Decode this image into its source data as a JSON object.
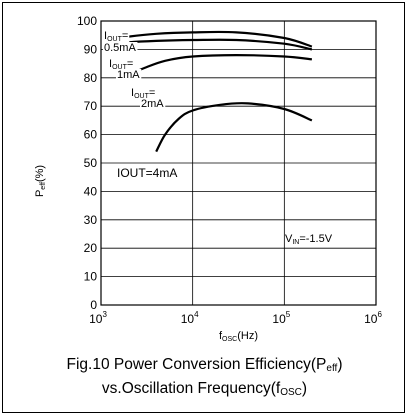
{
  "chart_data": {
    "type": "line",
    "xscale": "log",
    "xlim": [
      1000,
      1000000
    ],
    "ylim": [
      0,
      100
    ],
    "yticks": [
      0,
      10,
      20,
      30,
      40,
      50,
      60,
      70,
      80,
      90,
      100
    ],
    "xticks": [
      {
        "value": 1000,
        "base": "10",
        "exp": "3"
      },
      {
        "value": 10000,
        "base": "10",
        "exp": "4"
      },
      {
        "value": 100000,
        "base": "10",
        "exp": "5"
      },
      {
        "value": 1000000,
        "base": "10",
        "exp": "6"
      }
    ],
    "ylabel": {
      "main": "P",
      "sub": "eff",
      "tail": "(%)"
    },
    "xlabel": {
      "main": "f",
      "sub": "OSC",
      "tail": "(Hz)"
    },
    "grid": true,
    "series": [
      {
        "name": "IOUT=0.5mA",
        "x": [
          1400,
          2000,
          4000,
          10000,
          30000,
          100000,
          200000
        ],
        "y": [
          93.5,
          94.5,
          95.5,
          96,
          96,
          94,
          91
        ]
      },
      {
        "name": "IOUT=1mA",
        "x": [
          1400,
          2000,
          4000,
          10000,
          30000,
          100000,
          200000
        ],
        "y": [
          92,
          92.5,
          93,
          93.3,
          93.3,
          92,
          90
        ]
      },
      {
        "name": "IOUT=2mA",
        "x": [
          2000,
          3000,
          5000,
          10000,
          30000,
          100000,
          200000
        ],
        "y": [
          81,
          83.5,
          86,
          87.5,
          88,
          87.5,
          86.5
        ]
      },
      {
        "name": "IOUT=4mA",
        "x": [
          4000,
          5000,
          7000,
          10000,
          20000,
          40000,
          100000,
          200000
        ],
        "y": [
          54,
          60,
          65.5,
          68.5,
          70.5,
          71,
          69,
          65
        ]
      }
    ],
    "annotations": [
      {
        "key": "a05_l1",
        "main": "I",
        "sub": "OUT",
        "tail": "="
      },
      {
        "key": "a05_l2",
        "text": "0.5mA"
      },
      {
        "key": "a1_l1",
        "main": "I",
        "sub": "OUT",
        "tail": "="
      },
      {
        "key": "a1_l2",
        "text": "1mA"
      },
      {
        "key": "a2_l1",
        "main": "I",
        "sub": "OUT",
        "tail": "="
      },
      {
        "key": "a2_l2",
        "text": "2mA"
      },
      {
        "key": "a4",
        "text": "IOUT=4mA"
      },
      {
        "key": "vin",
        "main": "V",
        "sub": "IN",
        "tail": "=-1.5V"
      }
    ]
  },
  "caption": {
    "line1_main": "Fig.10  Power Conversion Efficiency(P",
    "line1_sub": "eff",
    "line1_tail": ")",
    "line2_main": "vs.Oscillation Frequency(f",
    "line2_sub": "OSC",
    "line2_tail": ")"
  }
}
